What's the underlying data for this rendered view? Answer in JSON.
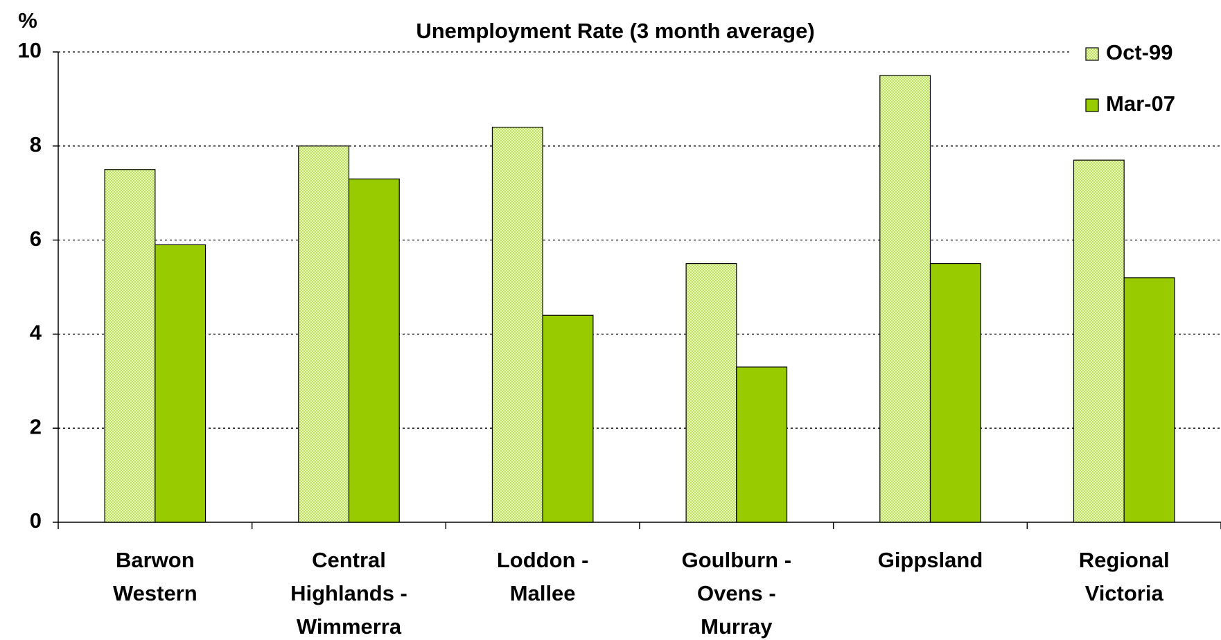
{
  "chart_data": {
    "type": "bar",
    "title": "Unemployment Rate (3 month average)",
    "y_label": "%",
    "categories": [
      [
        "Barwon",
        "Western"
      ],
      [
        "Central",
        "Highlands -",
        "Wimmerra"
      ],
      [
        "Loddon -",
        "Mallee"
      ],
      [
        "Goulburn -",
        "Ovens -",
        "Murray"
      ],
      [
        "Gippsland"
      ],
      [
        "Regional",
        "Victoria"
      ]
    ],
    "series": [
      {
        "name": "Oct-99",
        "color": "#d4ec8c",
        "values": [
          7.5,
          8.0,
          8.4,
          5.5,
          9.5,
          7.7
        ]
      },
      {
        "name": "Mar-07",
        "color": "#99cc00",
        "values": [
          5.9,
          7.3,
          4.4,
          3.3,
          5.5,
          5.2
        ]
      }
    ],
    "ylim": [
      0,
      10
    ],
    "yticks": [
      0,
      2,
      4,
      6,
      8,
      10
    ],
    "grid": true,
    "legend": "top-right"
  }
}
